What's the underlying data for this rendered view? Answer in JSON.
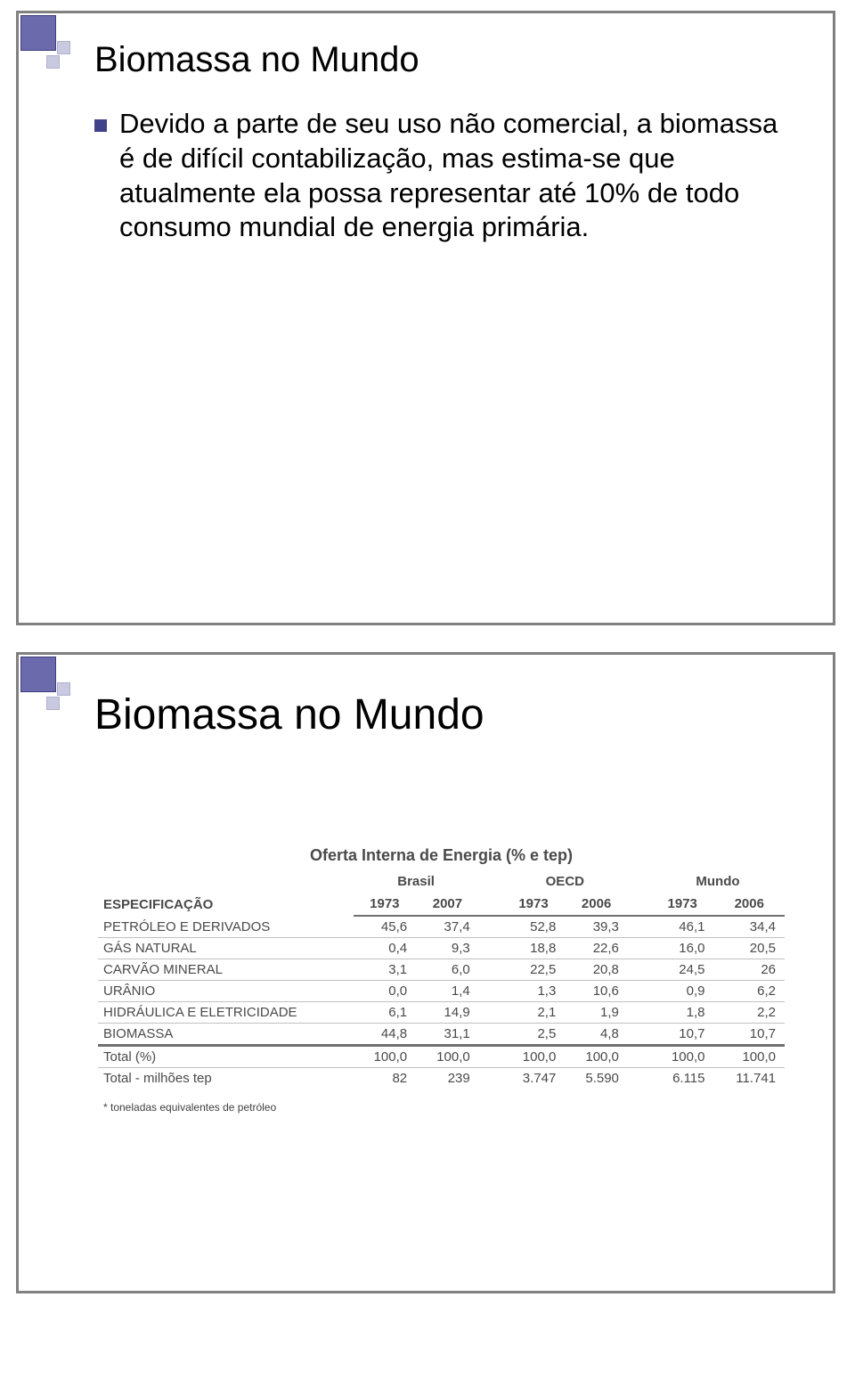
{
  "slide1": {
    "title": "Biomassa no Mundo",
    "bullet": "Devido a parte de seu uso não comercial, a biomassa é de difícil contabilização, mas estima-se que atualmente ela possa representar até 10% de todo consumo mundial de energia primária."
  },
  "slide2": {
    "title": "Biomassa no Mundo",
    "table_title": "Oferta Interna de Energia (% e tep)",
    "spec_label": "ESPECIFICAÇÃO",
    "regions": [
      "Brasil",
      "OECD",
      "Mundo"
    ],
    "years": [
      "1973",
      "2007",
      "1973",
      "2006",
      "1973",
      "2006"
    ],
    "rows": [
      {
        "label": "PETRÓLEO E DERIVADOS",
        "vals": [
          "45,6",
          "37,4",
          "52,8",
          "39,3",
          "46,1",
          "34,4"
        ]
      },
      {
        "label": "GÁS NATURAL",
        "vals": [
          "0,4",
          "9,3",
          "18,8",
          "22,6",
          "16,0",
          "20,5"
        ]
      },
      {
        "label": "CARVÃO MINERAL",
        "vals": [
          "3,1",
          "6,0",
          "22,5",
          "20,8",
          "24,5",
          "26"
        ]
      },
      {
        "label": "URÂNIO",
        "vals": [
          "0,0",
          "1,4",
          "1,3",
          "10,6",
          "0,9",
          "6,2"
        ]
      },
      {
        "label": "HIDRÁULICA E ELETRICIDADE",
        "vals": [
          "6,1",
          "14,9",
          "2,1",
          "1,9",
          "1,8",
          "2,2"
        ]
      },
      {
        "label": "BIOMASSA",
        "vals": [
          "44,8",
          "31,1",
          "2,5",
          "4,8",
          "10,7",
          "10,7"
        ]
      }
    ],
    "totals": [
      {
        "label": "Total (%)",
        "vals": [
          "100,0",
          "100,0",
          "100,0",
          "100,0",
          "100,0",
          "100,0"
        ]
      },
      {
        "label": "Total - milhões tep",
        "vals": [
          "82",
          "239",
          "3.747",
          "5.590",
          "6.115",
          "11.741"
        ]
      }
    ],
    "footnote": "* toneladas equivalentes de petróleo"
  }
}
